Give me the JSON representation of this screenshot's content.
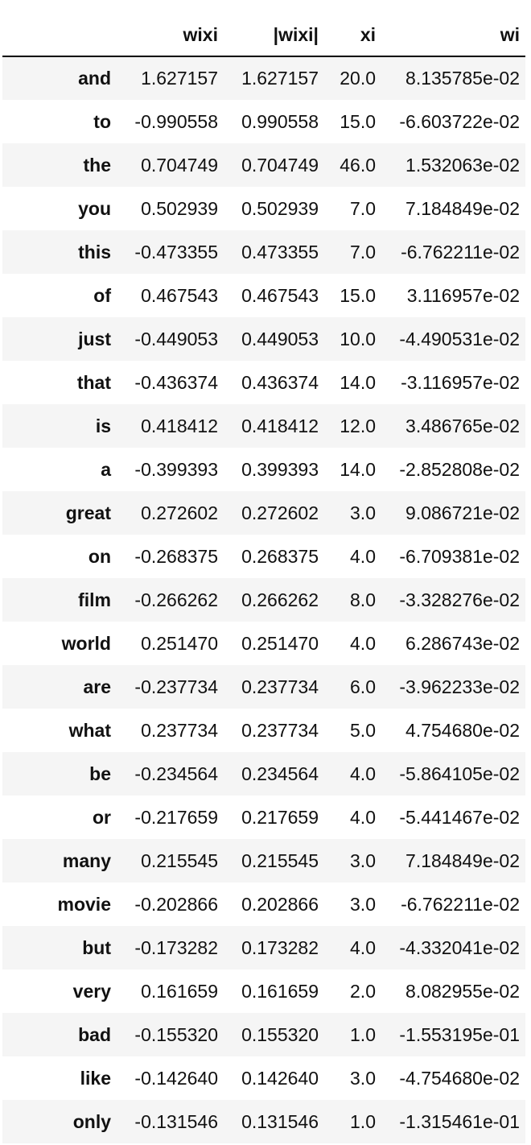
{
  "table": {
    "columns": [
      "",
      "wixi",
      "|wixi|",
      "xi",
      "wi"
    ],
    "rows": [
      [
        "and",
        "1.627157",
        "1.627157",
        "20.0",
        "8.135785e-02"
      ],
      [
        "to",
        "-0.990558",
        "0.990558",
        "15.0",
        "-6.603722e-02"
      ],
      [
        "the",
        "0.704749",
        "0.704749",
        "46.0",
        "1.532063e-02"
      ],
      [
        "you",
        "0.502939",
        "0.502939",
        "7.0",
        "7.184849e-02"
      ],
      [
        "this",
        "-0.473355",
        "0.473355",
        "7.0",
        "-6.762211e-02"
      ],
      [
        "of",
        "0.467543",
        "0.467543",
        "15.0",
        "3.116957e-02"
      ],
      [
        "just",
        "-0.449053",
        "0.449053",
        "10.0",
        "-4.490531e-02"
      ],
      [
        "that",
        "-0.436374",
        "0.436374",
        "14.0",
        "-3.116957e-02"
      ],
      [
        "is",
        "0.418412",
        "0.418412",
        "12.0",
        "3.486765e-02"
      ],
      [
        "a",
        "-0.399393",
        "0.399393",
        "14.0",
        "-2.852808e-02"
      ],
      [
        "great",
        "0.272602",
        "0.272602",
        "3.0",
        "9.086721e-02"
      ],
      [
        "on",
        "-0.268375",
        "0.268375",
        "4.0",
        "-6.709381e-02"
      ],
      [
        "film",
        "-0.266262",
        "0.266262",
        "8.0",
        "-3.328276e-02"
      ],
      [
        "world",
        "0.251470",
        "0.251470",
        "4.0",
        "6.286743e-02"
      ],
      [
        "are",
        "-0.237734",
        "0.237734",
        "6.0",
        "-3.962233e-02"
      ],
      [
        "what",
        "0.237734",
        "0.237734",
        "5.0",
        "4.754680e-02"
      ],
      [
        "be",
        "-0.234564",
        "0.234564",
        "4.0",
        "-5.864105e-02"
      ],
      [
        "or",
        "-0.217659",
        "0.217659",
        "4.0",
        "-5.441467e-02"
      ],
      [
        "many",
        "0.215545",
        "0.215545",
        "3.0",
        "7.184849e-02"
      ],
      [
        "movie",
        "-0.202866",
        "0.202866",
        "3.0",
        "-6.762211e-02"
      ],
      [
        "but",
        "-0.173282",
        "0.173282",
        "4.0",
        "-4.332041e-02"
      ],
      [
        "very",
        "0.161659",
        "0.161659",
        "2.0",
        "8.082955e-02"
      ],
      [
        "bad",
        "-0.155320",
        "0.155320",
        "1.0",
        "-1.553195e-01"
      ],
      [
        "like",
        "-0.142640",
        "0.142640",
        "3.0",
        "-4.754680e-02"
      ],
      [
        "only",
        "-0.131546",
        "0.131546",
        "1.0",
        "-1.315461e-01"
      ]
    ]
  }
}
